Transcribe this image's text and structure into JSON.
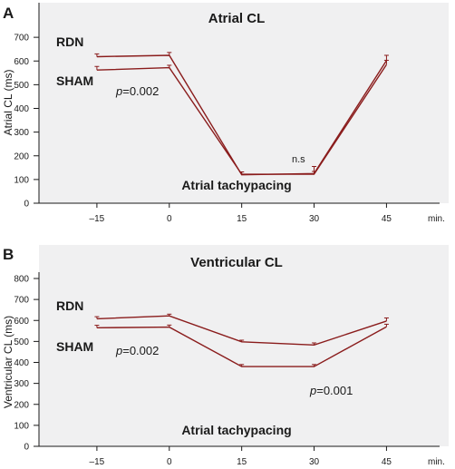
{
  "colors": {
    "series": "#8a1c1c",
    "plot_background": "#f0f0f1",
    "axis": "#1a1a1a"
  },
  "chart_data": [
    {
      "panel": "A",
      "type": "line",
      "title": "Atrial CL",
      "subtitle": "Atrial tachypacing",
      "ylabel": "Atrial CL (ms)",
      "x_unit": "min.",
      "x_ticks": [
        -15,
        0,
        15,
        30,
        45
      ],
      "x_tick_labels": [
        "–15",
        "0",
        "15",
        "30",
        "45"
      ],
      "xlim": [
        -27,
        56
      ],
      "ylim": [
        0,
        800
      ],
      "y_ticks": [
        0,
        100,
        200,
        300,
        400,
        500,
        600,
        700
      ],
      "series": [
        {
          "name": "RDN",
          "x": [
            -15,
            0,
            15,
            30,
            45
          ],
          "values": [
            618,
            624,
            120,
            125,
            602
          ],
          "errors": [
            12,
            12,
            12,
            30,
            22
          ]
        },
        {
          "name": "SHAM",
          "x": [
            -15,
            0,
            15,
            30,
            45
          ],
          "values": [
            562,
            572,
            122,
            122,
            585
          ],
          "errors": [
            15,
            10,
            10,
            12,
            18
          ]
        }
      ],
      "annotations": [
        {
          "html": "<tspan font-style=\"italic\">p</tspan>=0.002"
        },
        {
          "text": "n.s"
        }
      ]
    },
    {
      "panel": "B",
      "type": "line",
      "title": "Ventricular CL",
      "subtitle": "Atrial tachypacing",
      "ylabel": "Ventricular CL (ms)",
      "x_unit": "min.",
      "x_ticks": [
        -15,
        0,
        15,
        30,
        45
      ],
      "x_tick_labels": [
        "–15",
        "0",
        "15",
        "30",
        "45"
      ],
      "xlim": [
        -27,
        56
      ],
      "ylim": [
        0,
        800
      ],
      "y_ticks": [
        0,
        100,
        200,
        300,
        400,
        500,
        600,
        700,
        800
      ],
      "series": [
        {
          "name": "RDN",
          "x": [
            -15,
            0,
            15,
            30,
            45
          ],
          "values": [
            608,
            622,
            498,
            483,
            597
          ],
          "errors": [
            10,
            8,
            8,
            10,
            15
          ]
        },
        {
          "name": "SHAM",
          "x": [
            -15,
            0,
            15,
            30,
            45
          ],
          "values": [
            565,
            568,
            380,
            380,
            570
          ],
          "errors": [
            12,
            10,
            10,
            10,
            12
          ]
        }
      ],
      "annotations": [
        {
          "html": "<tspan font-style=\"italic\">p</tspan>=0.002"
        },
        {
          "html": "<tspan font-style=\"italic\">p</tspan>=0.001"
        }
      ]
    }
  ]
}
